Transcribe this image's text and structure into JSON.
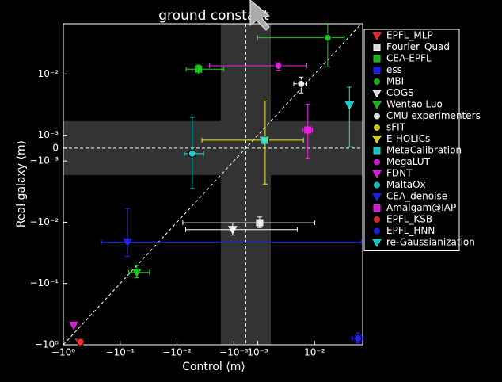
{
  "chart_data": {
    "type": "scatter",
    "title": "ground constant",
    "x_label": "Control ⟨m⟩",
    "y_label": "Real galaxy ⟨m⟩",
    "xscale": "symlog",
    "yscale": "symlog",
    "linthresh": 0.001,
    "linscale": 0.21,
    "xlim": [
      -1,
      0.07
    ],
    "ylim": [
      -1,
      0.066
    ],
    "xticks": [
      {
        "value": -1,
        "label": "−10⁰"
      },
      {
        "value": -0.1,
        "label": "−10⁻¹"
      },
      {
        "value": -0.01,
        "label": "−10⁻²"
      },
      {
        "value": -0.001,
        "label": "−10⁻³"
      },
      {
        "value": 0.001,
        "label": "10⁻³"
      },
      {
        "value": 0.01,
        "label": "10⁻²"
      }
    ],
    "yticks": [
      {
        "value": 0.01,
        "label": "10⁻²"
      },
      {
        "value": 0.001,
        "label": "10⁻³"
      },
      0,
      {
        "value": -0.001,
        "label": "−10⁻³"
      },
      {
        "value": -0.01,
        "label": "−10⁻²"
      },
      {
        "value": -0.1,
        "label": "−10⁻¹"
      },
      {
        "value": -1,
        "label": "−10⁰"
      }
    ],
    "shaded_band": 0.0017,
    "zero_lines": true,
    "diagonal": true,
    "legend": "upper right",
    "series": [
      {
        "name": "EPFL_MLP",
        "color": "#ff3030",
        "marker": "triangle-down",
        "x": [
          -0.52
        ],
        "y": [
          -0.91
        ]
      },
      {
        "name": "Fourier_Quad",
        "color": "#ffffff",
        "marker": "square",
        "x": [
          0.00108
        ],
        "y": [
          -0.0102
        ],
        "xerr": [
          0.009
        ],
        "yerr": [
          0.002
        ]
      },
      {
        "name": "CEA-EPFL",
        "color": "#22cc22",
        "marker": "square",
        "x": [
          -0.0042
        ],
        "y": [
          0.012
        ],
        "xerr": [
          0.0027
        ],
        "yerr": [
          0.002
        ]
      },
      {
        "name": "ess",
        "color": "#2222ff",
        "marker": "square",
        "x": [
          0.058
        ],
        "y": [
          -0.79
        ],
        "xerr": [
          0.013
        ],
        "yerr": [
          0.15
        ]
      },
      {
        "name": "MBI",
        "color": "#22cc22",
        "marker": "circle",
        "x": [
          0.017
        ],
        "y": [
          0.039
        ],
        "xerr": [
          0.016
        ],
        "yerr": [
          0.026
        ]
      },
      {
        "name": "COGS",
        "color": "#ffffff",
        "marker": "triangle-down",
        "x": [
          -0.00105
        ],
        "y": [
          -0.0132
        ],
        "xerr": [
          0.006
        ],
        "yerr": [
          0.003
        ]
      },
      {
        "name": "Wentao Luo",
        "color": "#22cc22",
        "marker": "triangle-down",
        "x": [
          -0.051
        ],
        "y": [
          -0.066
        ],
        "xerr": [
          0.02
        ],
        "yerr": [
          0.015
        ]
      },
      {
        "name": "CMU experimenters",
        "color": "#ffffff",
        "marker": "circle",
        "x": [
          0.0058
        ],
        "y": [
          0.0069
        ],
        "xerr": [
          0.0015
        ],
        "yerr": [
          0.002
        ]
      },
      {
        "name": "sFIT",
        "color": "#eeee22",
        "marker": "circle",
        "x": [
          0.00135
        ],
        "y": [
          0.00062
        ],
        "xerr": [
          0.005
        ],
        "yerr": [
          0.003
        ]
      },
      {
        "name": "E-HOLICs",
        "color": "#eeee22",
        "marker": "triangle-down",
        "x": [
          0.0013
        ],
        "y": [
          0.0006
        ]
      },
      {
        "name": "MetaCalibration",
        "color": "#22dddd",
        "marker": "square",
        "x": [
          0.0013
        ],
        "y": [
          0.0006
        ]
      },
      {
        "name": "MegaLUT",
        "color": "#ee22ee",
        "marker": "circle",
        "x": [
          0.0023
        ],
        "y": [
          0.0136
        ],
        "xerr": [
          0.005
        ],
        "yerr": [
          0.002
        ]
      },
      {
        "name": "FDNT",
        "color": "#ee22ee",
        "marker": "triangle-down",
        "x": [
          -0.66
        ],
        "y": [
          -0.48
        ]
      },
      {
        "name": "MaltaOx",
        "color": "#22dddd",
        "marker": "circle",
        "x": [
          -0.0054
        ],
        "y": [
          -0.00043
        ],
        "xerr": [
          0.002
        ],
        "yerr": [
          0.0024
        ]
      },
      {
        "name": "CEA_denoise",
        "color": "#2222ff",
        "marker": "triangle-down",
        "x": [
          -0.074
        ],
        "y": [
          -0.021
        ],
        "xerr": [
          0.14
        ],
        "yerr": [
          0.015
        ]
      },
      {
        "name": "Amalgam@IAP",
        "color": "#ee22ee",
        "marker": "square",
        "x": [
          0.0076
        ],
        "y": [
          0.00122
        ],
        "xerr": [
          0.0015
        ],
        "yerr": [
          0.002
        ]
      },
      {
        "name": "EPFL_KSB",
        "color": "#ff3030",
        "marker": "circle",
        "x": [
          -0.5
        ],
        "y": [
          -0.9
        ]
      },
      {
        "name": "EPFL_HNN",
        "color": "#2222ff",
        "marker": "circle",
        "x": [
          0.058
        ],
        "y": [
          -0.79
        ],
        "xerr": [
          0.013
        ],
        "yerr": [
          0.15
        ]
      },
      {
        "name": "re-Gaussianization",
        "color": "#22dddd",
        "marker": "triangle-down",
        "x": [
          0.041
        ],
        "y": [
          0.0031
        ],
        "yerr": [
          0.003
        ]
      }
    ]
  }
}
